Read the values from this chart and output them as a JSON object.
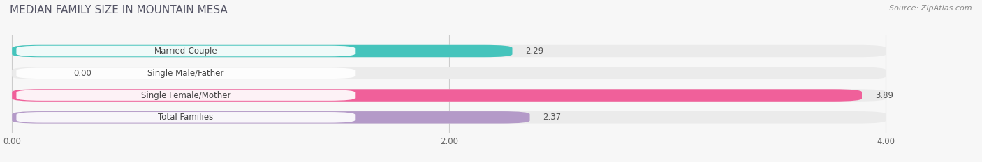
{
  "title": "MEDIAN FAMILY SIZE IN MOUNTAIN MESA",
  "source": "Source: ZipAtlas.com",
  "categories": [
    "Married-Couple",
    "Single Male/Father",
    "Single Female/Mother",
    "Total Families"
  ],
  "values": [
    2.29,
    0.0,
    3.89,
    2.37
  ],
  "bar_colors": [
    "#45c4bc",
    "#a8b8e8",
    "#f0609a",
    "#b49ac8"
  ],
  "bar_bg_color": "#ebebeb",
  "xlim_max": 4.0,
  "xticks": [
    0.0,
    2.0,
    4.0
  ],
  "xtick_labels": [
    "0.00",
    "2.00",
    "4.00"
  ],
  "title_fontsize": 11,
  "label_fontsize": 8.5,
  "value_fontsize": 8.5,
  "source_fontsize": 8,
  "bar_height": 0.55,
  "background_color": "#f7f7f7",
  "grid_color": "#cccccc",
  "title_color": "#555566",
  "label_color": "#444444",
  "value_color": "#555555"
}
